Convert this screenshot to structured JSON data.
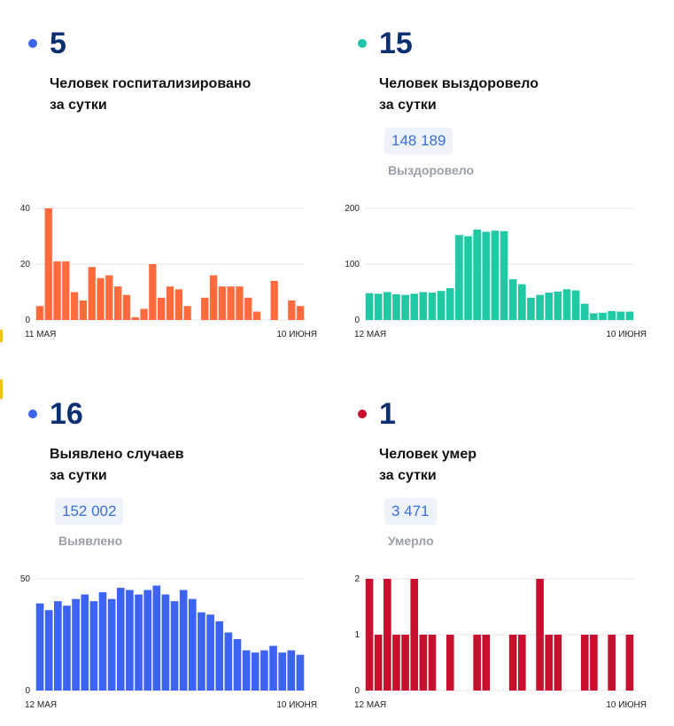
{
  "panels": [
    {
      "value": "5",
      "desc_line1": "Человек госпитализировано",
      "desc_line2": "за сутки",
      "dot_color": "#3a63e8",
      "bar_color": "#ff6b3d"
    },
    {
      "value": "15",
      "desc_line1": "Человек выздоровело",
      "desc_line2": "за сутки",
      "total": "148 189",
      "total_label": "Выздоровело",
      "dot_color": "#1fc6a6",
      "bar_color": "#1ec9a3"
    },
    {
      "value": "16",
      "desc_line1": "Выявлено случаев",
      "desc_line2": "за сутки",
      "total": "152 002",
      "total_label": "Выявлено",
      "dot_color": "#3a63e8",
      "bar_color": "#3c63f2"
    },
    {
      "value": "1",
      "desc_line1": "Человек умер",
      "desc_line2": "за сутки",
      "total": "3 471",
      "total_label": "Умерло",
      "dot_color": "#c8102e",
      "bar_color": "#c8102e"
    }
  ],
  "chart_data": [
    {
      "type": "bar",
      "title": "Человек госпитализировано за сутки",
      "x_start_label": "11 МАЯ",
      "x_end_label": "10 ИЮНЯ",
      "y_ticks": [
        0,
        20,
        40
      ],
      "ylim": [
        0,
        40
      ],
      "grid": true,
      "values": [
        5,
        40,
        21,
        21,
        10,
        7,
        19,
        15,
        16,
        12,
        9,
        1,
        4,
        20,
        8,
        12,
        11,
        5,
        0,
        8,
        16,
        12,
        12,
        12,
        8,
        3,
        0,
        14,
        0,
        7,
        5
      ]
    },
    {
      "type": "bar",
      "title": "Человек выздоровело за сутки",
      "x_start_label": "12 МАЯ",
      "x_end_label": "10 ИЮНЯ",
      "y_ticks": [
        0,
        100,
        200
      ],
      "ylim": [
        0,
        200
      ],
      "grid": true,
      "values": [
        48,
        47,
        50,
        46,
        45,
        47,
        50,
        49,
        52,
        57,
        152,
        150,
        162,
        158,
        160,
        159,
        73,
        64,
        40,
        45,
        49,
        51,
        55,
        53,
        29,
        12,
        13,
        16,
        15,
        15
      ]
    },
    {
      "type": "bar",
      "title": "Выявлено случаев за сутки",
      "x_start_label": "12 МАЯ",
      "x_end_label": "10 ИЮНЯ",
      "y_ticks": [
        0,
        50
      ],
      "ylim": [
        0,
        50
      ],
      "grid": true,
      "values": [
        39,
        36,
        40,
        38,
        41,
        43,
        40,
        44,
        41,
        46,
        45,
        43,
        45,
        47,
        43,
        40,
        45,
        41,
        35,
        34,
        31,
        26,
        23,
        18,
        17,
        18,
        20,
        17,
        18,
        16
      ]
    },
    {
      "type": "bar",
      "title": "Человек умер за сутки",
      "x_start_label": "12 МАЯ",
      "x_end_label": "10 ИЮНЯ",
      "y_ticks": [
        0,
        1,
        2
      ],
      "ylim": [
        0,
        2
      ],
      "grid": true,
      "values": [
        2,
        1,
        2,
        1,
        1,
        2,
        1,
        1,
        0,
        1,
        0,
        0,
        1,
        1,
        0,
        0,
        1,
        1,
        0,
        2,
        1,
        1,
        0,
        0,
        1,
        1,
        0,
        1,
        0,
        1
      ]
    }
  ]
}
